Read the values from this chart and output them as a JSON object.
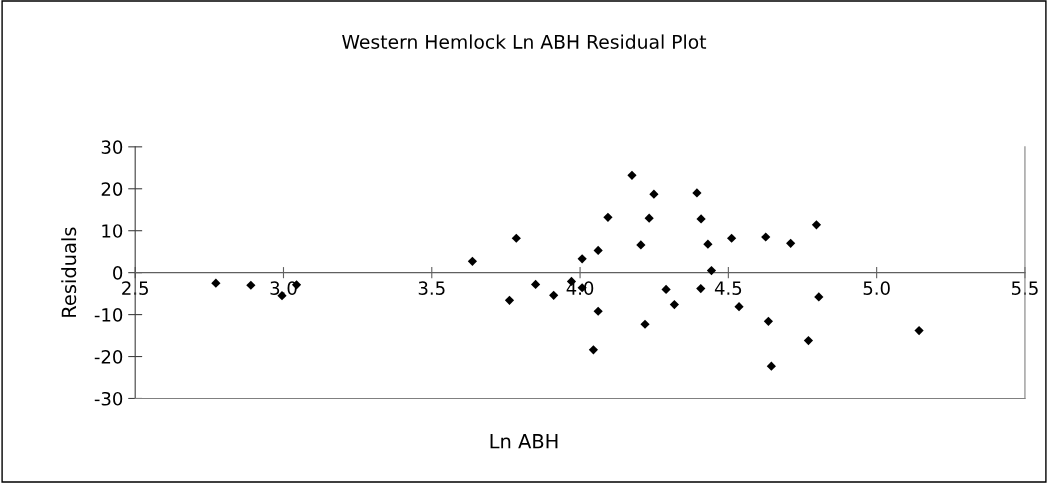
{
  "chart_data": {
    "type": "scatter",
    "title": "Western Hemlock Ln ABH Residual Plot",
    "xlabel": "Ln ABH",
    "ylabel": "Residuals",
    "series": [
      {
        "color": "#000000",
        "x": [
          2.772,
          2.89,
          2.995,
          3.044,
          3.637,
          3.785,
          3.762,
          3.85,
          3.911,
          3.971,
          4.007,
          4.007,
          4.175,
          4.249,
          4.394,
          4.094,
          4.233,
          4.408,
          4.797,
          4.061,
          4.205,
          4.431,
          4.511,
          4.626,
          4.71,
          4.443,
          4.29,
          4.407,
          4.805,
          4.061,
          4.318,
          4.536,
          4.219,
          4.635,
          5.143,
          4.77,
          4.045,
          4.645
        ],
        "values": [
          -2.5,
          -3.0,
          -5.5,
          -2.9,
          2.7,
          8.2,
          -6.6,
          -2.8,
          -5.4,
          -2.1,
          3.3,
          -3.6,
          23.2,
          18.7,
          19.0,
          13.2,
          13.0,
          12.8,
          11.4,
          5.3,
          6.6,
          6.8,
          8.2,
          8.5,
          7.0,
          0.5,
          -4.0,
          -3.8,
          -5.8,
          -9.2,
          -7.6,
          -8.1,
          -12.3,
          -11.6,
          -13.8,
          -16.2,
          -18.4,
          -22.3
        ]
      }
    ],
    "xlim": [
      2.5,
      5.5
    ],
    "xticks": [
      2.5,
      {
        "value": 3,
        "label": "3.0"
      },
      3.5,
      {
        "value": 4,
        "label": "4.0"
      },
      4.5,
      {
        "value": 5,
        "label": "5.0"
      },
      5.5
    ],
    "ylim": [
      -30,
      30
    ],
    "yticks": [
      -30,
      -20,
      -10,
      0,
      10,
      20,
      30
    ],
    "marker": "diamond",
    "grid": false,
    "legend": false
  }
}
